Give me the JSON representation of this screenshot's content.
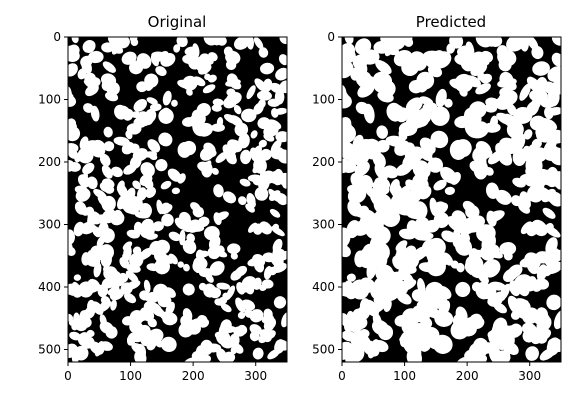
{
  "chart_data": [
    {
      "type": "heatmap",
      "title": "Original",
      "xlabel": "",
      "ylabel": "",
      "xlim": [
        0,
        350
      ],
      "ylim": [
        520,
        0
      ],
      "xticks": [
        0,
        100,
        200,
        300
      ],
      "yticks": [
        0,
        100,
        200,
        300,
        400,
        500
      ],
      "colormap": [
        "#000000",
        "#ffffff"
      ],
      "grid": false,
      "seed": 12345
    },
    {
      "type": "heatmap",
      "title": "Predicted",
      "xlabel": "",
      "ylabel": "",
      "xlim": [
        0,
        350
      ],
      "ylim": [
        520,
        0
      ],
      "xticks": [
        0,
        100,
        200,
        300
      ],
      "yticks": [
        0,
        100,
        200,
        300,
        400,
        500
      ],
      "colormap": [
        "#000000",
        "#ffffff"
      ],
      "grid": false,
      "seed": 12345
    }
  ]
}
